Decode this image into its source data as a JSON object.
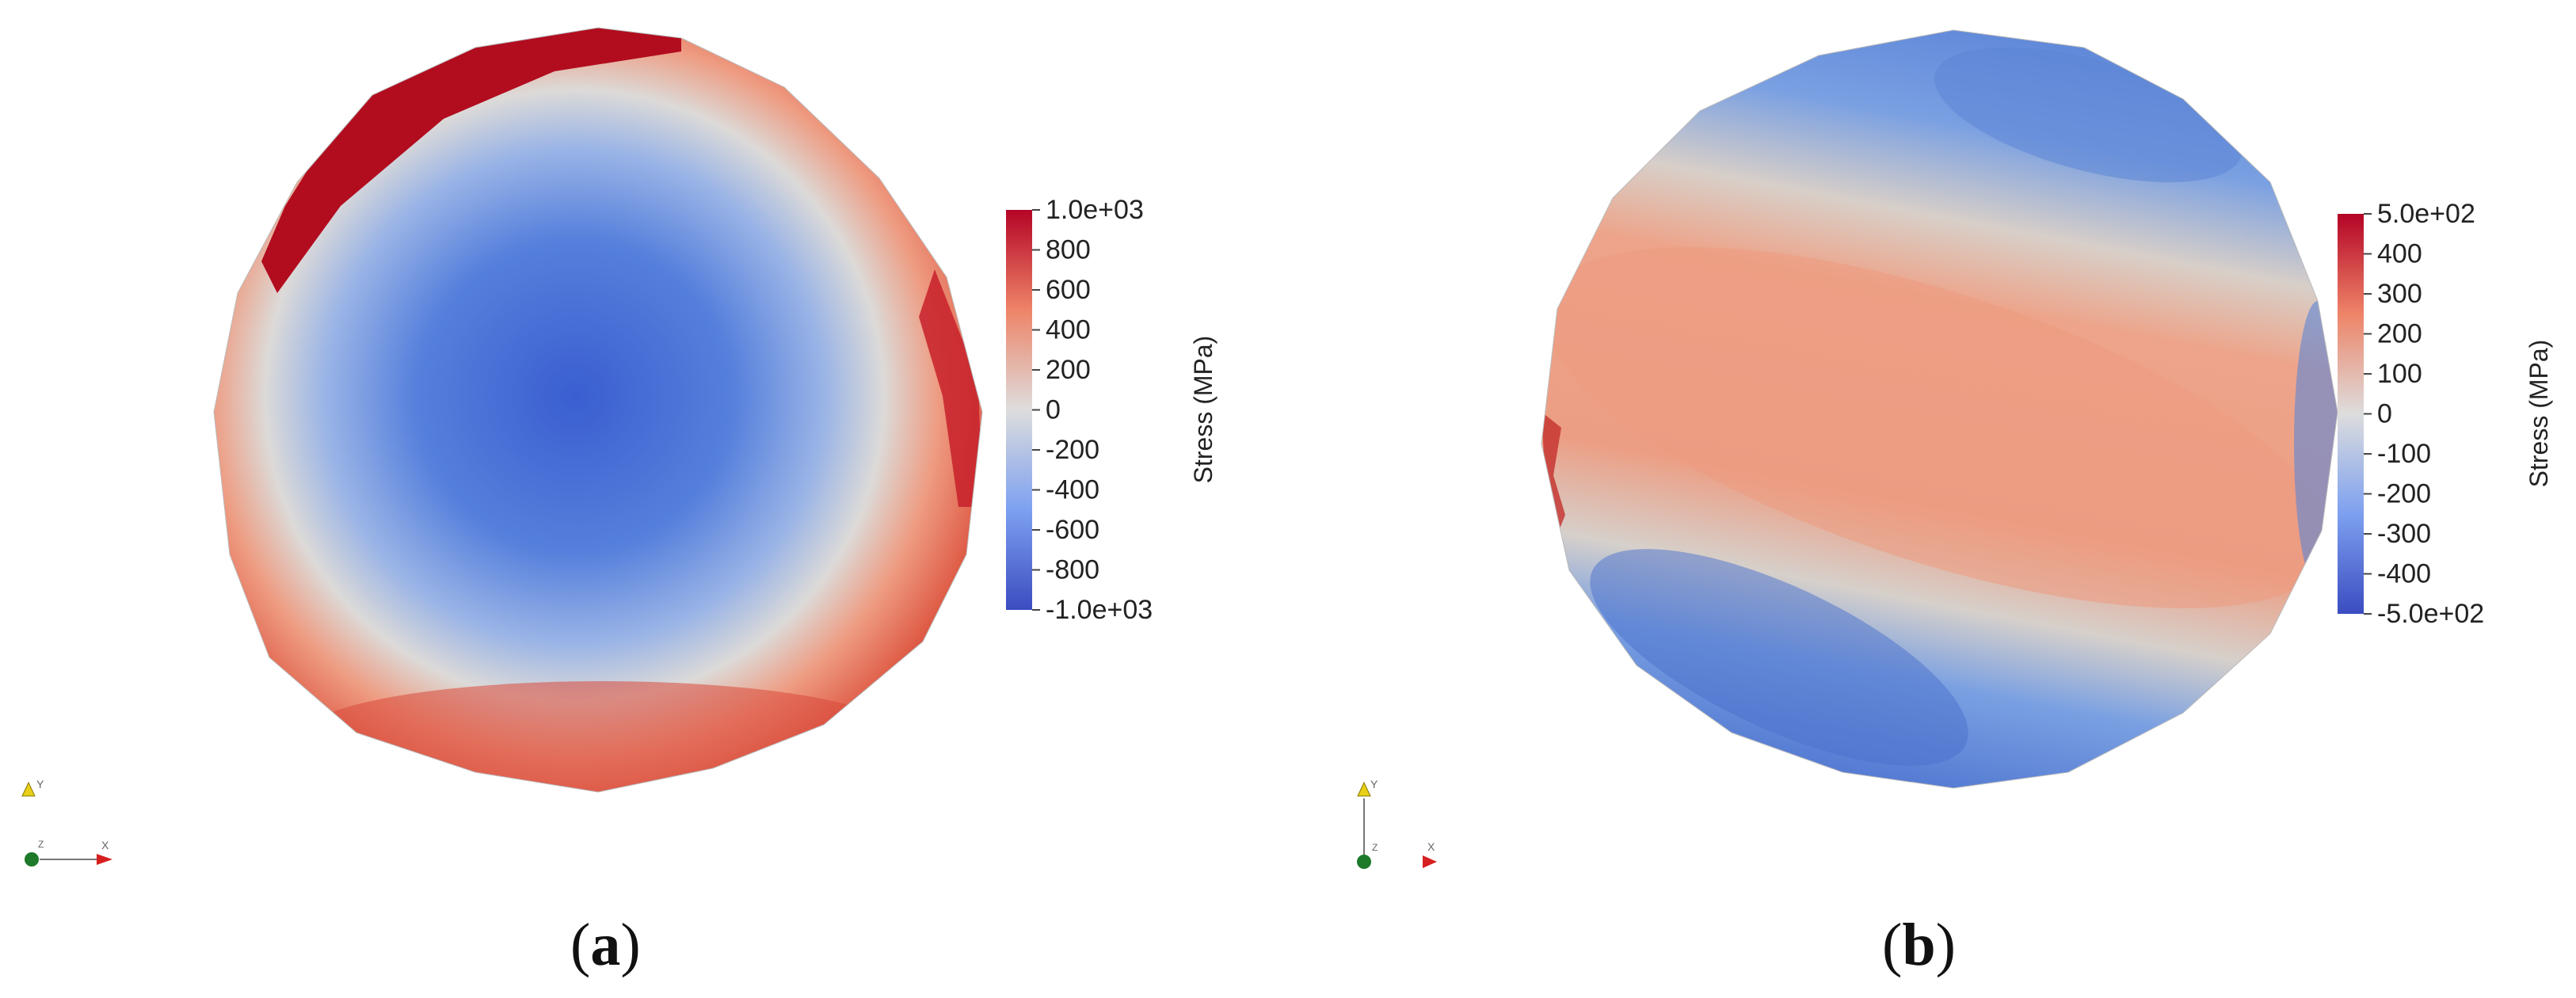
{
  "panels": [
    {
      "id": "a",
      "caption_letter": "a",
      "colorbar": {
        "title": "Stress (MPa)",
        "range": [
          -1000,
          1000
        ],
        "ticks": [
          "1.0e+03",
          "800",
          "600",
          "400",
          "200",
          "0",
          "-200",
          "-400",
          "-600",
          "-800",
          "-1.0e+03"
        ],
        "tick_values": [
          1000,
          800,
          600,
          400,
          200,
          0,
          -200,
          -400,
          -600,
          -800,
          -1000
        ]
      },
      "axes_triad": [
        "Y",
        "Z",
        "X"
      ]
    },
    {
      "id": "b",
      "caption_letter": "b",
      "colorbar": {
        "title": "Stress (MPa)",
        "range": [
          -500,
          500
        ],
        "ticks": [
          "5.0e+02",
          "400",
          "300",
          "200",
          "100",
          "0",
          "-100",
          "-200",
          "-300",
          "-400",
          "-5.0e+02"
        ],
        "tick_values": [
          500,
          400,
          300,
          200,
          100,
          0,
          -100,
          -200,
          -300,
          -400,
          -500
        ]
      },
      "axes_triad": [
        "Y",
        "Z",
        "X"
      ]
    }
  ],
  "colors": {
    "high": "#b40426",
    "mid": "#dddddd",
    "low": "#3b4cc0"
  }
}
